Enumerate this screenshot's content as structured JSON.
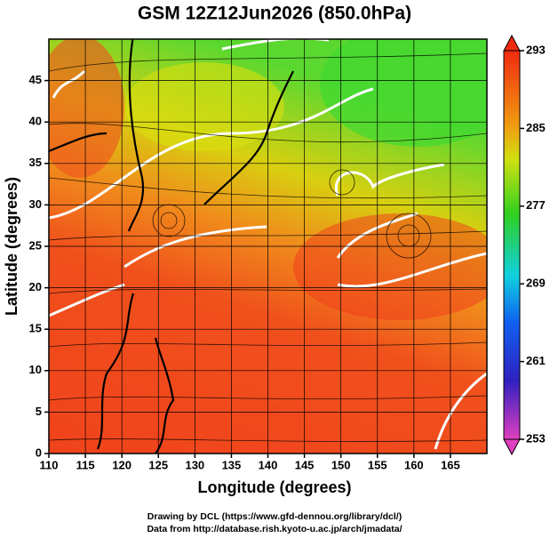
{
  "chart_data": {
    "type": "map",
    "title": "GSM 12Z12Jun2026 (850.0hPa)",
    "xlabel": "Longitude (degrees)",
    "ylabel": "Latitude  (degrees)",
    "xlim": [
      110,
      170
    ],
    "xticks": [
      110,
      115,
      120,
      125,
      130,
      135,
      140,
      145,
      150,
      155,
      160,
      165
    ],
    "ylim": [
      0,
      50
    ],
    "yticks": [
      0,
      5,
      10,
      15,
      20,
      25,
      30,
      35,
      40,
      45
    ],
    "grid": true,
    "colorbar": {
      "lim": [
        253,
        293
      ],
      "ticks": [
        253,
        261,
        269,
        277,
        285,
        293
      ]
    },
    "credits": [
      "Drawing by DCL (https://www.gfd-dennou.org/library/dcl/)",
      "Data from http://database.rish.kyoto-u.ac.jp/arch/jmadata/"
    ]
  }
}
